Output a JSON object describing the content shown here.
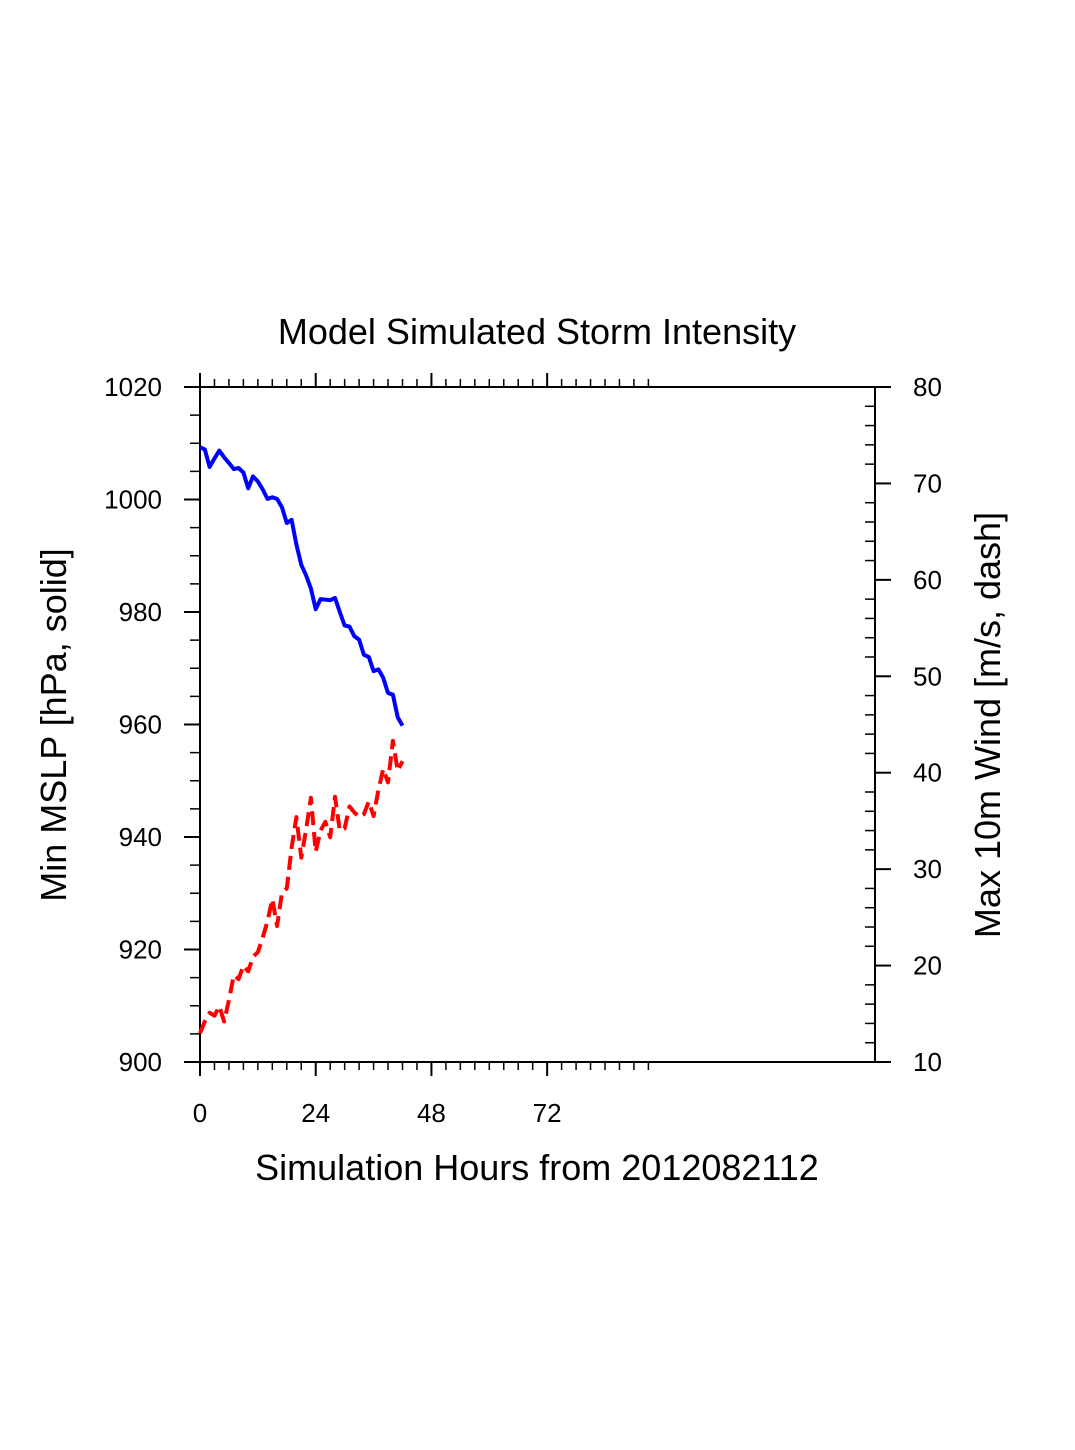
{
  "chart_data": {
    "type": "line",
    "title": "Model Simulated Storm Intensity",
    "xlabel": "Simulation Hours from 2012082112",
    "ylabel_left": "Min MSLP  [hPa, solid]",
    "ylabel_right": "Max 10m Wind  [m/s, dash]",
    "xlim": [
      0,
      140
    ],
    "ylim_left": [
      900,
      1020
    ],
    "ylim_right": [
      10,
      80
    ],
    "x_ticks": [
      0,
      24,
      48,
      72
    ],
    "x_tick_labels": [
      "0",
      "24",
      "48",
      "72"
    ],
    "y_left_ticks": [
      900,
      920,
      940,
      960,
      980,
      1000,
      1020
    ],
    "y_left_tick_labels": [
      "900",
      "920",
      "940",
      "960",
      "980",
      "1000",
      "1020"
    ],
    "y_right_ticks": [
      10,
      20,
      30,
      40,
      50,
      60,
      70,
      80
    ],
    "y_right_tick_labels": [
      "10",
      "20",
      "30",
      "40",
      "50",
      "60",
      "70",
      "80"
    ],
    "grid": false,
    "series": [
      {
        "axis": "left",
        "style": "solid",
        "color": "#0000ff",
        "x": [
          0,
          1,
          2,
          3,
          4,
          5,
          6,
          7,
          8,
          9,
          10,
          11,
          12,
          13,
          14,
          15,
          16,
          17,
          18,
          19,
          20,
          21,
          22,
          23,
          24,
          25,
          26,
          27,
          28,
          29,
          30,
          31,
          32,
          33,
          34,
          35,
          36,
          37,
          38,
          39,
          40,
          41,
          42
        ],
        "values": [
          1009.3,
          1008.9,
          1005.8,
          1007.3,
          1008.7,
          1007.5,
          1006.5,
          1005.4,
          1005.6,
          1004.8,
          1002.0,
          1004.1,
          1003.2,
          1001.8,
          1000.1,
          1000.4,
          1000.1,
          998.6,
          995.8,
          996.4,
          992.0,
          988.4,
          986.5,
          984.2,
          980.5,
          982.3,
          982.2,
          982.1,
          982.5,
          980.0,
          977.6,
          977.4,
          975.7,
          975.1,
          972.4,
          972.0,
          969.5,
          969.8,
          968.3,
          965.6,
          965.3,
          961.3,
          959.8
        ]
      },
      {
        "axis": "right",
        "style": "dash",
        "color": "#ff0000",
        "x": [
          0,
          1,
          2,
          3,
          4,
          5,
          6,
          7,
          8,
          9,
          10,
          11,
          12,
          13,
          14,
          15,
          16,
          17,
          18,
          19,
          20,
          21,
          22,
          23,
          24,
          25,
          26,
          27,
          28,
          29,
          30,
          31,
          32,
          33,
          34,
          35,
          36,
          37,
          38,
          39,
          40,
          41,
          42
        ],
        "values": [
          13.0,
          14.2,
          15.1,
          14.8,
          15.8,
          14.2,
          16.4,
          19.0,
          18.6,
          20.0,
          19.4,
          20.9,
          21.4,
          22.9,
          24.6,
          26.9,
          24.1,
          27.6,
          28.0,
          32.2,
          35.4,
          31.2,
          34.1,
          37.4,
          31.8,
          34.0,
          34.9,
          33.3,
          37.5,
          34.0,
          34.2,
          36.5,
          35.9,
          35.4,
          35.7,
          37.0,
          35.5,
          38.2,
          40.4,
          39.0,
          43.3,
          40.2,
          41.2
        ]
      }
    ]
  }
}
